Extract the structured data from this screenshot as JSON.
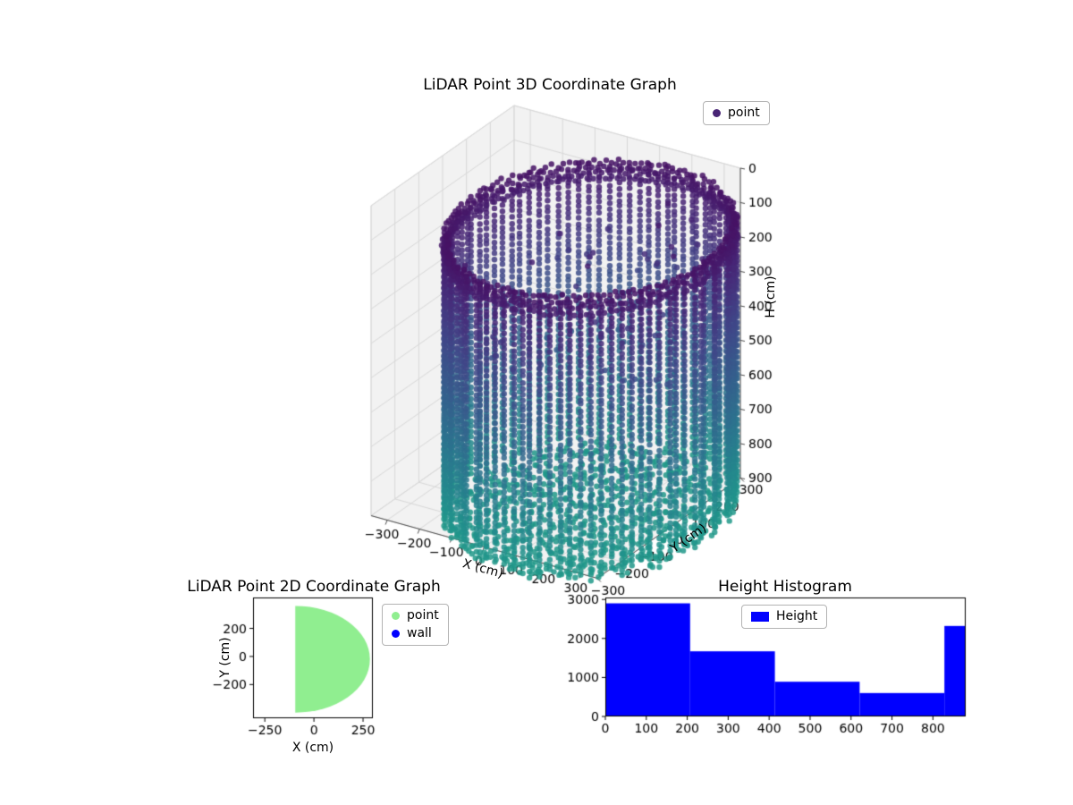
{
  "figure": {
    "background": "#ffffff"
  },
  "chart_data": [
    {
      "type": "scatter3d",
      "title": "LiDAR Point 3D Coordinate Graph",
      "xlabel": "X (cm)",
      "ylabel": "Y (cm)",
      "zlabel": "H (cm)",
      "xlim": [
        -350,
        350
      ],
      "ylim": [
        -300,
        300
      ],
      "zlim": [
        0,
        900
      ],
      "zaxis_inverted": true,
      "xticks": [
        -300,
        -200,
        -100,
        0,
        100,
        200,
        300
      ],
      "yticks": [
        -300,
        -200,
        -100,
        0,
        100,
        200,
        300
      ],
      "zticks": [
        0,
        100,
        200,
        300,
        400,
        500,
        600,
        700,
        800,
        900
      ],
      "grid": true,
      "pane_color": "#f2f2f2",
      "grid_color": "#d8d8d8",
      "legend": [
        {
          "label": "point",
          "marker_color": "#482475"
        }
      ],
      "point_cloud": {
        "shape": "cylinder",
        "center_x": 150,
        "center_y": -60,
        "radius": 360,
        "z_top": 55,
        "z_bottom": 880,
        "wall_columns": 88,
        "wall_z_step": 16,
        "rim_rings": 4,
        "rim_ring_points": 150,
        "floor_ring_step": 22,
        "floor_z": 858,
        "interior_points": 70,
        "marker_size_px": 3.2,
        "alpha": 0.85
      },
      "colormap": "viridis",
      "colormap_stops": [
        "#440154",
        "#482475",
        "#414487",
        "#355f8d",
        "#2a788e",
        "#21918c",
        "#22a884",
        "#44bf70",
        "#7ad151",
        "#bddf26",
        "#fde725"
      ],
      "color_t_range": [
        0.02,
        0.55
      ]
    },
    {
      "type": "scatter",
      "title": "LiDAR Point 2D Coordinate Graph",
      "xlabel": "X (cm)",
      "ylabel": "Y (cm)",
      "xlim": [
        -310,
        300
      ],
      "ylim": [
        -440,
        420
      ],
      "xticks": [
        -250,
        0,
        250
      ],
      "yticks": [
        -200,
        0,
        200
      ],
      "legend": [
        {
          "label": "point",
          "marker_color": "#90ee90"
        },
        {
          "label": "wall",
          "marker_color": "#0000ff"
        }
      ],
      "point_region": {
        "shape": "half_disk",
        "center_x": -95,
        "center_y": -20,
        "radius": 380,
        "flat_edge_x": -95,
        "fill_color": "#90ee90"
      }
    },
    {
      "type": "histogram",
      "title": "Height Histogram",
      "bar_color": "#0000ff",
      "legend": [
        {
          "label": "Height",
          "patch_color": "#0000ff"
        }
      ],
      "bin_edges": [
        0,
        207,
        414,
        621,
        828,
        880
      ],
      "counts": [
        2900,
        1670,
        890,
        600,
        2320
      ],
      "xlim": [
        0,
        880
      ],
      "ylim": [
        0,
        3050
      ],
      "xticks": [
        0,
        100,
        200,
        300,
        400,
        500,
        600,
        700,
        800
      ],
      "yticks": [
        0,
        1000,
        2000,
        3000
      ]
    }
  ]
}
